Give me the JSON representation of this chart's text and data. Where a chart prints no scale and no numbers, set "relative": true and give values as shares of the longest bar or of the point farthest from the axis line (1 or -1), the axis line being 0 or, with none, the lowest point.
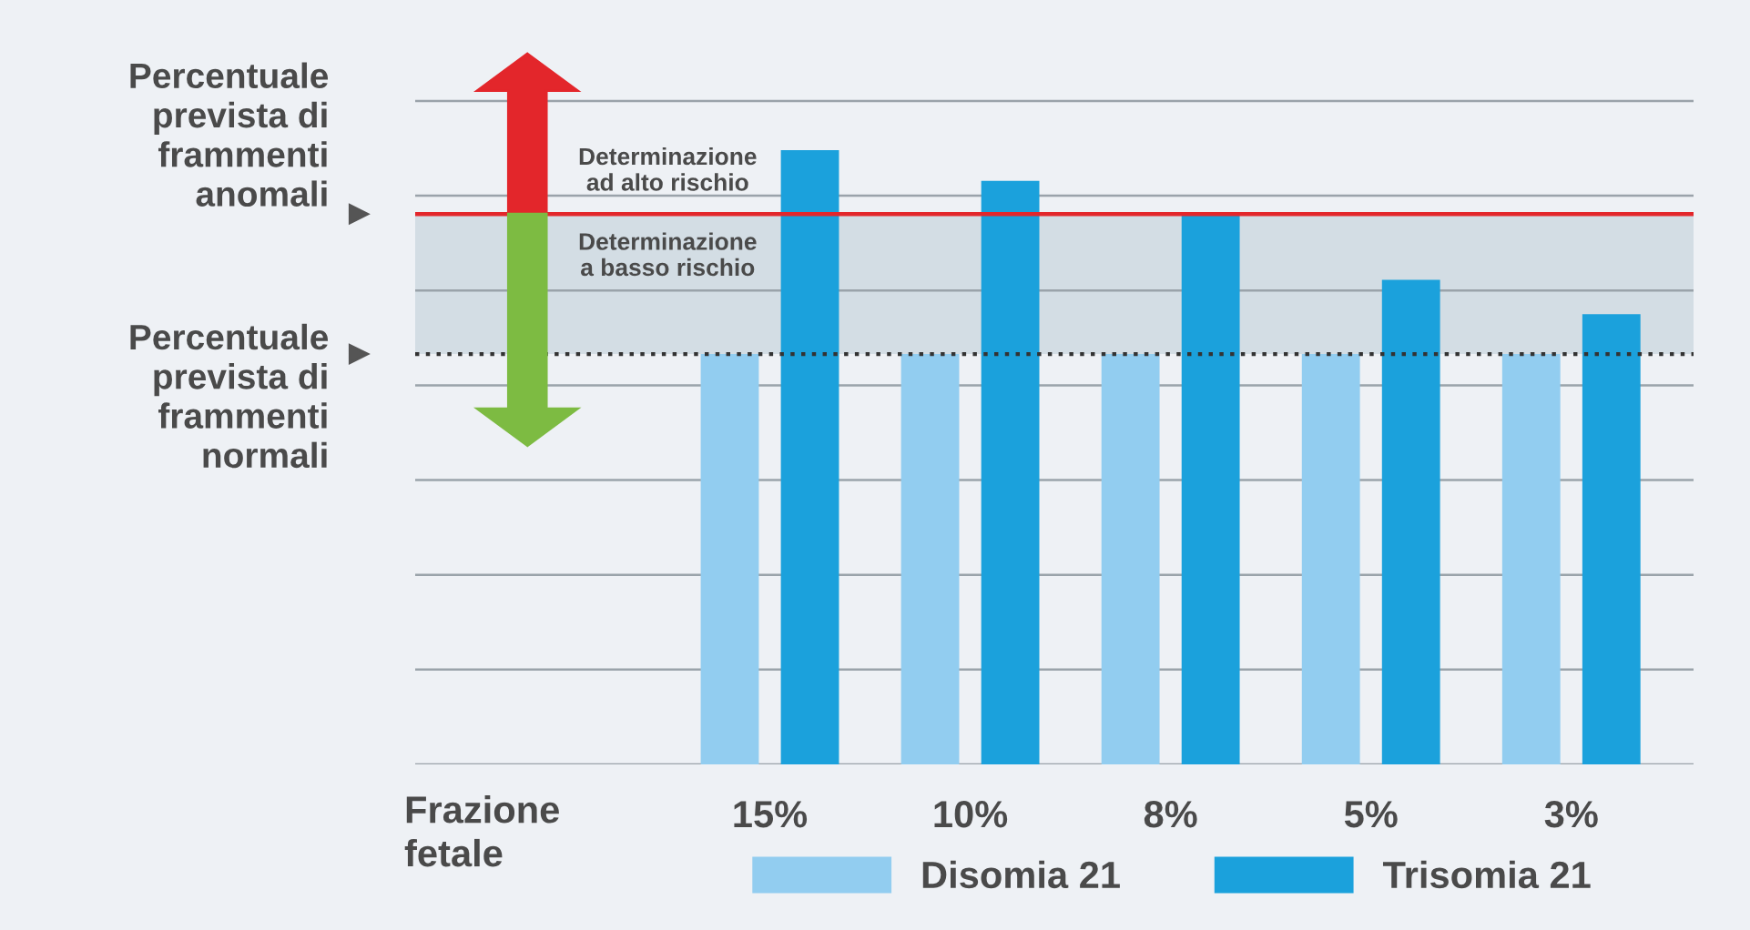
{
  "chart_data": {
    "type": "bar",
    "relative": true,
    "xlabel": "Frazione fetale",
    "categories": [
      "15%",
      "10%",
      "8%",
      "5%",
      "3%"
    ],
    "series": [
      {
        "name": "Disomia 21",
        "color": "#92cdf0",
        "values": [
          0.668,
          0.668,
          0.668,
          0.668,
          0.668
        ]
      },
      {
        "name": "Trisomia 21",
        "color": "#1ba1dc",
        "values": [
          1,
          0.95,
          0.896,
          0.789,
          0.733
        ]
      }
    ],
    "ref_lines": [
      {
        "axis": "y",
        "value": 0.896,
        "label": "Percentuale prevista di frammenti anomali",
        "color": "#e3262b",
        "line_style": "solid"
      },
      {
        "axis": "y",
        "value": 0.668,
        "label": "Percentuale prevista di frammenti normali",
        "color": "#333333",
        "line_style": "dotted"
      }
    ],
    "bands": [
      {
        "axis": "y",
        "from": 0.668,
        "to": 0.896,
        "color": "#d3dde4"
      }
    ],
    "annotations": [
      "Determinazione ad alto rischio",
      "Determinazione a basso rischio"
    ],
    "grid": "y",
    "legend": "bottom"
  }
}
